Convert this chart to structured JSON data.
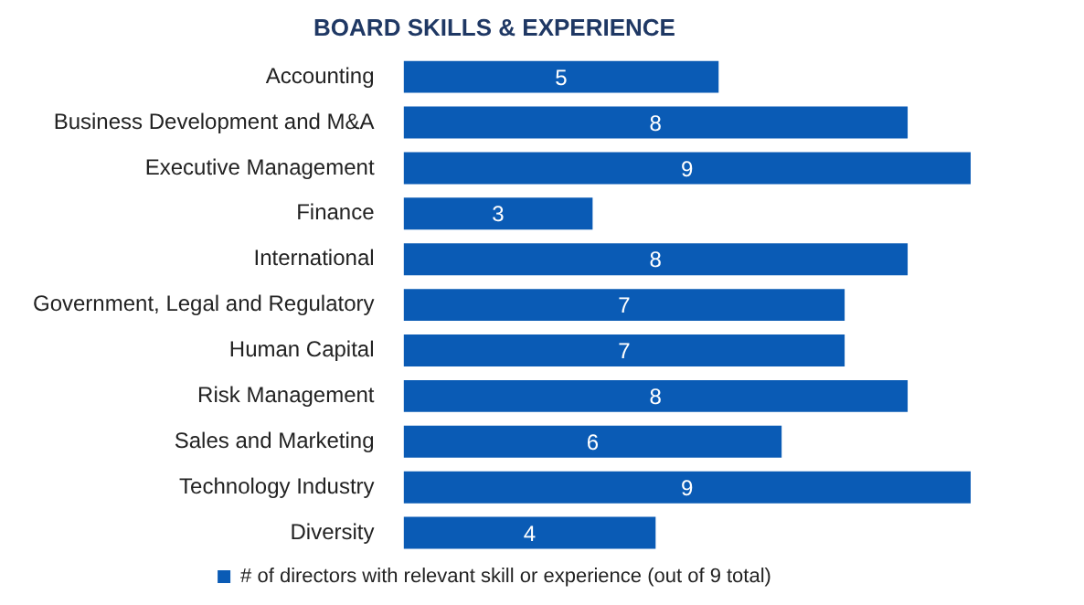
{
  "chart_data": {
    "type": "bar",
    "orientation": "horizontal",
    "title": "BOARD SKILLS & EXPERIENCE",
    "categories": [
      "Accounting",
      "Business Development and M&A",
      "Executive Management",
      "Finance",
      "International",
      "Government, Legal and Regulatory",
      "Human Capital",
      "Risk Management",
      "Sales and Marketing",
      "Technology Industry",
      "Diversity"
    ],
    "series": [
      {
        "name": "# of directors with relevant skill or experience (out of 9 total)",
        "color": "#0a5bb5",
        "values": [
          5,
          8,
          9,
          3,
          8,
          7,
          7,
          8,
          6,
          9,
          4
        ]
      }
    ],
    "xlim": [
      0,
      9
    ],
    "data_labels": true,
    "legend": "bottom",
    "tick_labels": "y"
  }
}
